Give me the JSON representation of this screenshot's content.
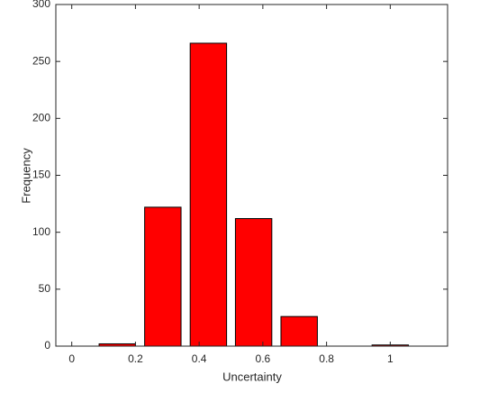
{
  "chart_data": {
    "type": "bar",
    "x_label": "Uncertainty",
    "y_label": "Frequency",
    "x": [
      0.143,
      0.286,
      0.429,
      0.571,
      0.714,
      0.857,
      1.0
    ],
    "values": [
      2,
      122,
      266,
      112,
      26,
      0,
      1
    ],
    "color": "#ff0000",
    "xlim": [
      -0.05,
      1.18
    ],
    "xticks": [
      0,
      0.2,
      0.4,
      0.6,
      0.8,
      1
    ],
    "ylim": [
      0,
      300
    ],
    "yticks": [
      0,
      50,
      100,
      150,
      200,
      250,
      300
    ]
  }
}
